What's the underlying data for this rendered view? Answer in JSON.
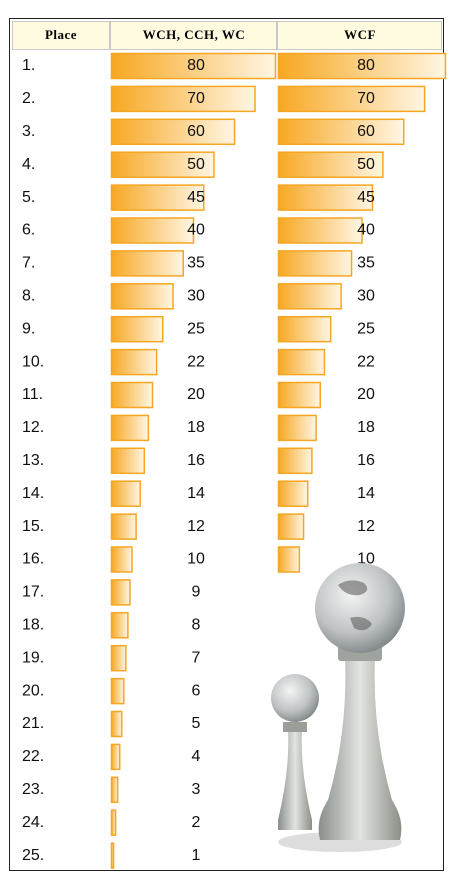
{
  "table": {
    "headers": [
      "Place",
      "WCH, CCH, WC",
      "WCF"
    ],
    "rows": [
      [
        "1.",
        80,
        80
      ],
      [
        "2.",
        70,
        70
      ],
      [
        "3.",
        60,
        60
      ],
      [
        "4.",
        50,
        50
      ],
      [
        "5.",
        45,
        45
      ],
      [
        "6.",
        40,
        40
      ],
      [
        "7.",
        35,
        35
      ],
      [
        "8.",
        30,
        30
      ],
      [
        "9.",
        25,
        25
      ],
      [
        "10.",
        22,
        22
      ],
      [
        "11.",
        20,
        20
      ],
      [
        "12.",
        18,
        18
      ],
      [
        "13.",
        16,
        16
      ],
      [
        "14.",
        14,
        14
      ],
      [
        "15.",
        12,
        12
      ],
      [
        "16.",
        10,
        10
      ],
      [
        "17.",
        9,
        null
      ],
      [
        "18.",
        8,
        null
      ],
      [
        "19.",
        7,
        null
      ],
      [
        "20.",
        6,
        null
      ],
      [
        "21.",
        5,
        null
      ],
      [
        "22.",
        4,
        null
      ],
      [
        "23.",
        3,
        null
      ],
      [
        "24.",
        2,
        null
      ],
      [
        "25.",
        1,
        null
      ]
    ]
  }
}
